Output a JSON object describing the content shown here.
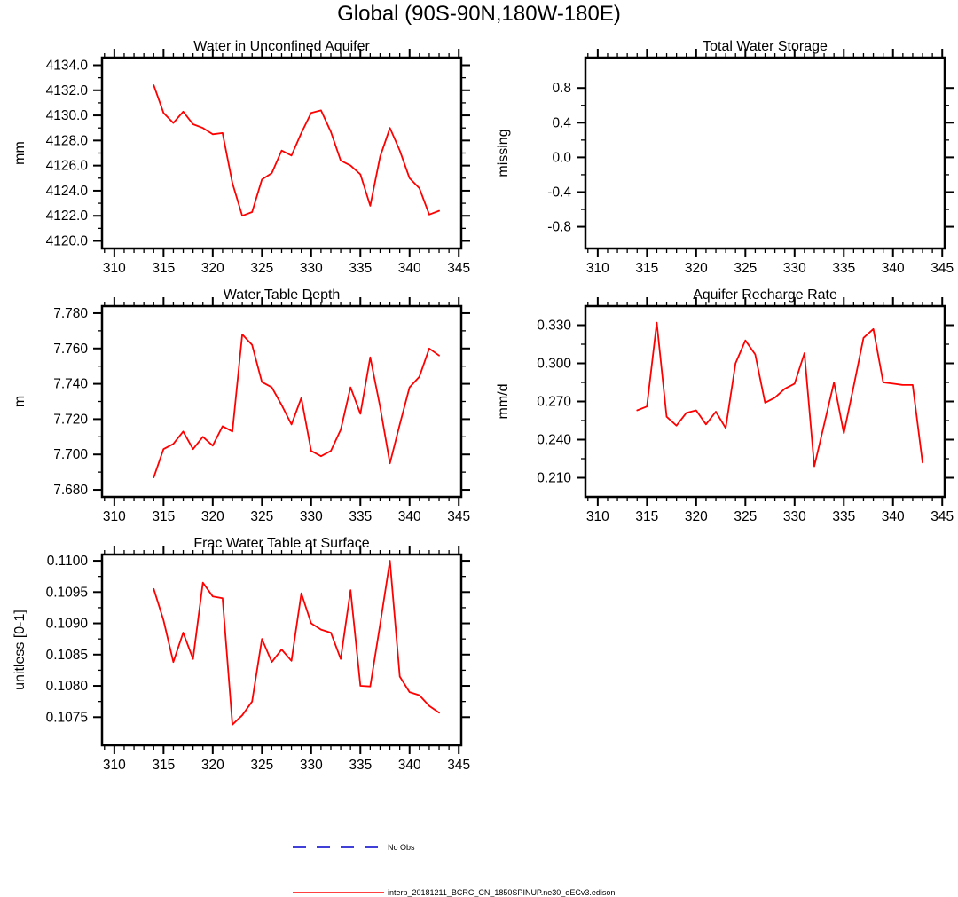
{
  "title": "Global (90S-90N,180W-180E)",
  "legend": {
    "items": [
      {
        "label": "No Obs",
        "color": "#0000cc",
        "style": "dashed"
      },
      {
        "label": "interp_20181211_BCRC_CN_1850SPINUP.ne30_oECv3.edison",
        "color": "#ff0000",
        "style": "solid"
      }
    ]
  },
  "chart_data": [
    {
      "type": "line",
      "title": "Water in Unconfined Aquifer",
      "ylabel": "mm",
      "xlim": [
        308.75,
        345.25
      ],
      "ylim": [
        4119.4,
        4134.6
      ],
      "xticks": [
        310,
        315,
        320,
        325,
        330,
        335,
        340,
        345
      ],
      "xtick_labels": [
        "310",
        "315",
        "320",
        "325",
        "330",
        "335",
        "340",
        "345"
      ],
      "ytick_values": [
        4120,
        4122,
        4124,
        4126,
        4128,
        4130,
        4132,
        4134
      ],
      "ytick_labels": [
        "4120.0",
        "4122.0",
        "4124.0",
        "4126.0",
        "4128.0",
        "4130.0",
        "4132.0",
        "4134.0"
      ],
      "line_color": "#ff0000",
      "x": [
        314,
        315,
        316,
        317,
        318,
        319,
        320,
        321,
        322,
        323,
        324,
        325,
        326,
        327,
        328,
        329,
        330,
        331,
        332,
        333,
        334,
        335,
        336,
        337,
        338,
        339,
        340,
        341,
        342,
        343
      ],
      "y": [
        4132.4,
        4130.2,
        4129.4,
        4130.3,
        4129.3,
        4129.0,
        4128.5,
        4128.6,
        4124.6,
        4122.0,
        4122.3,
        4124.9,
        4125.4,
        4127.2,
        4126.8,
        4128.6,
        4130.2,
        4130.4,
        4128.7,
        4126.4,
        4126.0,
        4125.3,
        4122.8,
        4126.7,
        4129.0,
        4127.2,
        4125.0,
        4124.2,
        4122.1,
        4122.4
      ]
    },
    {
      "type": "line",
      "title": "Total Water Storage",
      "ylabel": "missing",
      "xlim": [
        308.75,
        345.25
      ],
      "ylim": [
        -1.05,
        1.15
      ],
      "xticks": [
        310,
        315,
        320,
        325,
        330,
        335,
        340,
        345
      ],
      "xtick_labels": [
        "310",
        "315",
        "320",
        "325",
        "330",
        "335",
        "340",
        "345"
      ],
      "ytick_values": [
        -0.8,
        -0.4,
        0.0,
        0.4,
        0.8
      ],
      "ytick_labels": [
        "-0.8",
        "-0.4",
        "0.0",
        "0.4",
        "0.8"
      ],
      "line_color": "#ff0000",
      "x": [],
      "y": []
    },
    {
      "type": "line",
      "title": "Water Table Depth",
      "ylabel": "m",
      "xlim": [
        308.75,
        345.25
      ],
      "ylim": [
        7.676,
        7.784
      ],
      "xticks": [
        310,
        315,
        320,
        325,
        330,
        335,
        340,
        345
      ],
      "xtick_labels": [
        "310",
        "315",
        "320",
        "325",
        "330",
        "335",
        "340",
        "345"
      ],
      "ytick_values": [
        7.68,
        7.7,
        7.72,
        7.74,
        7.76,
        7.78
      ],
      "ytick_labels": [
        "7.680",
        "7.700",
        "7.720",
        "7.740",
        "7.760",
        "7.780"
      ],
      "line_color": "#ff0000",
      "x": [
        314,
        315,
        316,
        317,
        318,
        319,
        320,
        321,
        322,
        323,
        324,
        325,
        326,
        327,
        328,
        329,
        330,
        331,
        332,
        333,
        334,
        335,
        336,
        337,
        338,
        339,
        340,
        341,
        342,
        343
      ],
      "y": [
        7.687,
        7.703,
        7.706,
        7.713,
        7.703,
        7.71,
        7.705,
        7.716,
        7.713,
        7.768,
        7.762,
        7.741,
        7.738,
        7.728,
        7.717,
        7.732,
        7.702,
        7.699,
        7.702,
        7.714,
        7.738,
        7.723,
        7.755,
        7.727,
        7.695,
        7.717,
        7.738,
        7.744,
        7.76,
        7.756
      ]
    },
    {
      "type": "line",
      "title": "Aquifer Recharge Rate",
      "ylabel": "mm/d",
      "xlim": [
        308.75,
        345.25
      ],
      "ylim": [
        0.195,
        0.345
      ],
      "xticks": [
        310,
        315,
        320,
        325,
        330,
        335,
        340,
        345
      ],
      "xtick_labels": [
        "310",
        "315",
        "320",
        "325",
        "330",
        "335",
        "340",
        "345"
      ],
      "ytick_values": [
        0.21,
        0.24,
        0.27,
        0.3,
        0.33
      ],
      "ytick_labels": [
        "0.210",
        "0.240",
        "0.270",
        "0.300",
        "0.330"
      ],
      "line_color": "#ff0000",
      "x": [
        314,
        315,
        316,
        317,
        318,
        319,
        320,
        321,
        322,
        323,
        324,
        325,
        326,
        327,
        328,
        329,
        330,
        331,
        332,
        333,
        334,
        335,
        336,
        337,
        338,
        339,
        340,
        341,
        342,
        343
      ],
      "y": [
        0.263,
        0.266,
        0.332,
        0.258,
        0.251,
        0.261,
        0.263,
        0.252,
        0.262,
        0.249,
        0.3,
        0.318,
        0.307,
        0.269,
        0.273,
        0.28,
        0.284,
        0.308,
        0.219,
        0.252,
        0.285,
        0.245,
        0.282,
        0.32,
        0.327,
        0.285,
        0.284,
        0.283,
        0.283,
        0.222
      ]
    },
    {
      "type": "line",
      "title": "Frac Water Table at Surface",
      "ylabel": "unitless [0-1]",
      "xlim": [
        308.75,
        345.25
      ],
      "ylim": [
        0.10705,
        0.1101
      ],
      "xticks": [
        310,
        315,
        320,
        325,
        330,
        335,
        340,
        345
      ],
      "xtick_labels": [
        "310",
        "315",
        "320",
        "325",
        "330",
        "335",
        "340",
        "345"
      ],
      "ytick_values": [
        0.1075,
        0.108,
        0.1085,
        0.109,
        0.1095,
        0.11
      ],
      "ytick_labels": [
        "0.1075",
        "0.1080",
        "0.1085",
        "0.1090",
        "0.1095",
        "0.1100"
      ],
      "line_color": "#ff0000",
      "x": [
        314,
        315,
        316,
        317,
        318,
        319,
        320,
        321,
        322,
        323,
        324,
        325,
        326,
        327,
        328,
        329,
        330,
        331,
        332,
        333,
        334,
        335,
        336,
        337,
        338,
        339,
        340,
        341,
        342,
        343
      ],
      "y": [
        0.10955,
        0.10905,
        0.10838,
        0.10885,
        0.10843,
        0.10965,
        0.10943,
        0.1094,
        0.10738,
        0.10753,
        0.10775,
        0.10875,
        0.10838,
        0.10858,
        0.1084,
        0.10948,
        0.109,
        0.1089,
        0.10885,
        0.10843,
        0.10953,
        0.108,
        0.10799,
        0.10898,
        0.11,
        0.10815,
        0.1079,
        0.10785,
        0.10768,
        0.10757
      ]
    }
  ]
}
